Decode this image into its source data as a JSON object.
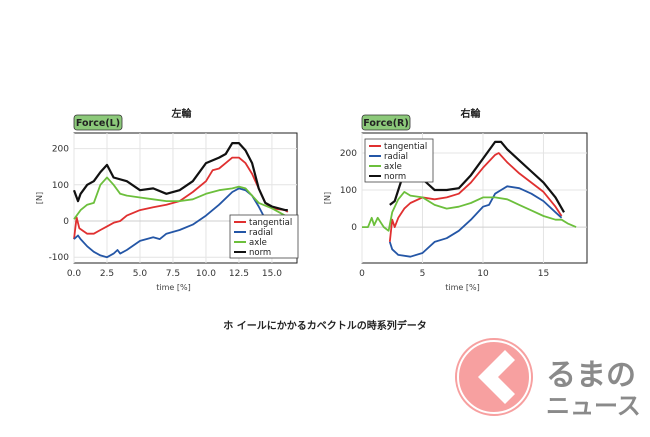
{
  "caption": "ホ イールにかかるカベクトルの時系列データ",
  "logo": {
    "line1": "るまの",
    "line2": "ニュース"
  },
  "colors": {
    "tangential": "#e03030",
    "radial": "#2456a6",
    "axle": "#6cbf3c",
    "norm": "#111111",
    "badge": "#8cc97a"
  },
  "chart_data": [
    {
      "type": "line",
      "title": "左輪",
      "badge": "Force(L)",
      "xlabel": "time [%]",
      "ylabel": "[N]",
      "xlim": [
        0,
        16.9
      ],
      "ylim": [
        -116,
        243
      ],
      "xticks": [
        0,
        2.5,
        5,
        7.5,
        10,
        12.5,
        15
      ],
      "xtick_labels": [
        "0.0",
        "2.5",
        "5.0",
        "7.5",
        "10.0",
        "12.5",
        "15.0"
      ],
      "yticks": [
        -100,
        0,
        100,
        200
      ],
      "ytick_labels": [
        "-100",
        "0",
        "100",
        "200"
      ],
      "grid": true,
      "legend": "bottom-right",
      "series": [
        {
          "name": "tangential",
          "x": [
            0,
            0.2,
            0.4,
            1,
            1.5,
            2,
            2.5,
            3,
            3.5,
            4,
            5,
            6,
            7,
            8,
            9,
            10,
            10.5,
            11,
            11.5,
            12,
            12.5,
            13,
            13.5,
            14,
            14.5,
            15,
            16,
            16.2
          ],
          "y": [
            -50,
            10,
            -20,
            -35,
            -35,
            -25,
            -15,
            -5,
            0,
            15,
            30,
            38,
            45,
            55,
            80,
            110,
            140,
            145,
            160,
            175,
            175,
            160,
            130,
            90,
            50,
            35,
            30,
            25
          ]
        },
        {
          "name": "radial",
          "x": [
            0,
            0.3,
            0.5,
            1,
            1.5,
            2,
            2.5,
            3,
            3.3,
            3.5,
            4,
            5,
            6,
            6.5,
            7,
            7.5,
            8,
            9,
            10,
            11,
            12,
            12.5,
            13,
            13.5,
            14,
            14.5
          ],
          "y": [
            -50,
            -40,
            -50,
            -70,
            -85,
            -95,
            -100,
            -90,
            -80,
            -90,
            -80,
            -55,
            -45,
            -50,
            -35,
            -30,
            -25,
            -10,
            15,
            45,
            80,
            90,
            85,
            70,
            40,
            5
          ]
        },
        {
          "name": "axle",
          "x": [
            0,
            0.5,
            1,
            1.5,
            2,
            2.5,
            3,
            3.5,
            4,
            5,
            6,
            7,
            8,
            9,
            10,
            11,
            12,
            12.5,
            13,
            14,
            15,
            16,
            16.2
          ],
          "y": [
            5,
            30,
            45,
            50,
            100,
            120,
            100,
            75,
            70,
            65,
            60,
            55,
            55,
            60,
            75,
            85,
            90,
            95,
            90,
            50,
            35,
            15,
            10
          ]
        },
        {
          "name": "norm",
          "x": [
            0,
            0.3,
            0.5,
            1,
            1.5,
            2,
            2.5,
            3,
            4,
            5,
            6,
            7,
            8,
            9,
            10,
            11,
            11.5,
            12,
            12.5,
            13,
            13.5,
            14,
            14.5,
            15,
            16,
            16.2
          ],
          "y": [
            85,
            55,
            75,
            100,
            110,
            135,
            155,
            120,
            110,
            85,
            90,
            75,
            85,
            110,
            160,
            175,
            185,
            215,
            215,
            195,
            160,
            90,
            50,
            40,
            30,
            30
          ]
        }
      ]
    },
    {
      "type": "line",
      "title": "右輪",
      "badge": "Force(R)",
      "xlabel": "time [%]",
      "ylabel": "[N]",
      "xlim": [
        0,
        18.6
      ],
      "ylim": [
        -97,
        254
      ],
      "xticks": [
        0,
        5,
        10,
        15
      ],
      "xtick_labels": [
        "0",
        "5",
        "10",
        "15"
      ],
      "yticks": [
        0,
        100,
        200
      ],
      "ytick_labels": [
        "0",
        "100",
        "200"
      ],
      "grid": true,
      "legend": "top-left",
      "series": [
        {
          "name": "tangential",
          "x": [
            2.3,
            2.5,
            2.7,
            3,
            3.5,
            4,
            5,
            6,
            7,
            8,
            9,
            10,
            11,
            11.3,
            12,
            13,
            14,
            15,
            16,
            16.5
          ],
          "y": [
            -40,
            20,
            0,
            25,
            50,
            65,
            80,
            75,
            80,
            90,
            120,
            160,
            195,
            200,
            175,
            145,
            120,
            95,
            55,
            30
          ]
        },
        {
          "name": "radial",
          "x": [
            2.3,
            2.5,
            3,
            4,
            5,
            6,
            7,
            8,
            9,
            10,
            10.5,
            11,
            11.5,
            12,
            13,
            14,
            15,
            16,
            16.5
          ],
          "y": [
            -40,
            -60,
            -75,
            -80,
            -70,
            -40,
            -30,
            -10,
            20,
            55,
            60,
            90,
            100,
            110,
            105,
            90,
            70,
            40,
            25
          ]
        },
        {
          "name": "axle",
          "x": [
            0,
            0.5,
            0.8,
            1,
            1.3,
            1.8,
            2.2,
            2.5,
            3,
            3.5,
            4,
            5,
            6,
            7,
            8,
            9,
            10,
            11,
            12,
            13,
            14,
            15,
            16,
            16.5,
            17,
            17.7
          ],
          "y": [
            0,
            0,
            25,
            5,
            25,
            0,
            -10,
            40,
            75,
            95,
            85,
            80,
            60,
            50,
            55,
            65,
            80,
            80,
            75,
            60,
            45,
            30,
            20,
            20,
            10,
            0
          ]
        },
        {
          "name": "norm",
          "x": [
            2.3,
            2.7,
            3,
            3.3,
            4,
            5,
            5.5,
            6,
            7,
            8,
            9,
            10,
            11,
            11.5,
            12,
            13,
            14,
            15,
            16,
            16.7
          ],
          "y": [
            60,
            70,
            100,
            130,
            130,
            130,
            115,
            100,
            100,
            105,
            140,
            185,
            230,
            230,
            210,
            180,
            150,
            120,
            80,
            40
          ]
        }
      ]
    }
  ]
}
